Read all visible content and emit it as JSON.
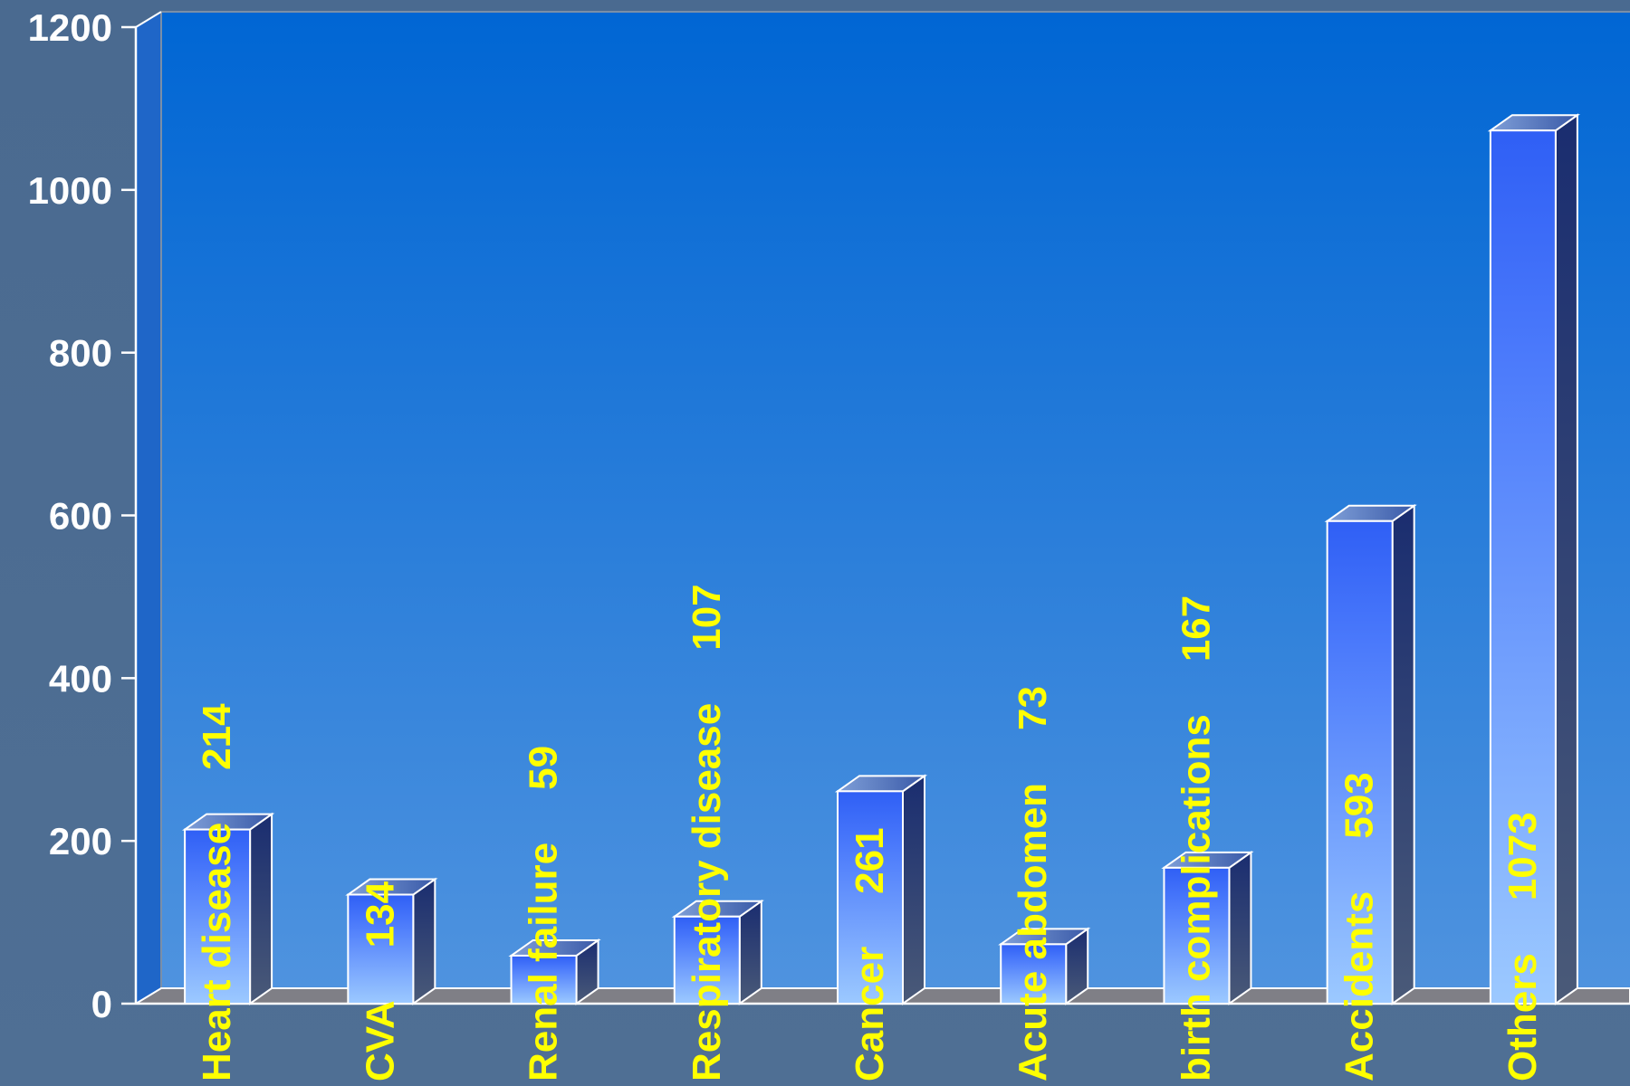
{
  "chart_data": {
    "type": "bar",
    "title": "",
    "xlabel": "",
    "ylabel": "",
    "ylim": [
      0,
      1200
    ],
    "yticks": [
      "0",
      "200",
      "400",
      "600",
      "800",
      "1000",
      "1200"
    ],
    "categories": [
      "Heart disease",
      "CVA",
      "Renal failure",
      "Respiratory disease",
      "Cancer",
      "Acute abdomen",
      "birth complications",
      "Accidents",
      "Others"
    ],
    "values": [
      214,
      134,
      59,
      107,
      261,
      73,
      167,
      593,
      1073
    ],
    "value_labels": [
      "214",
      "134",
      "59",
      "107",
      "261",
      "73",
      "167",
      "593",
      "1073"
    ],
    "bar_style": "3d",
    "grid": false,
    "legend": "none"
  },
  "colors": {
    "page_background": "#4c6d93",
    "plot_top": "#0066d4",
    "plot_bottom": "#4f93df",
    "bar_top": "#2f5ff5",
    "bar_bottom": "#9cc9ff",
    "bar_side": "#1c3174",
    "label_text": "#ffff00",
    "axis_text": "#ffffff"
  }
}
